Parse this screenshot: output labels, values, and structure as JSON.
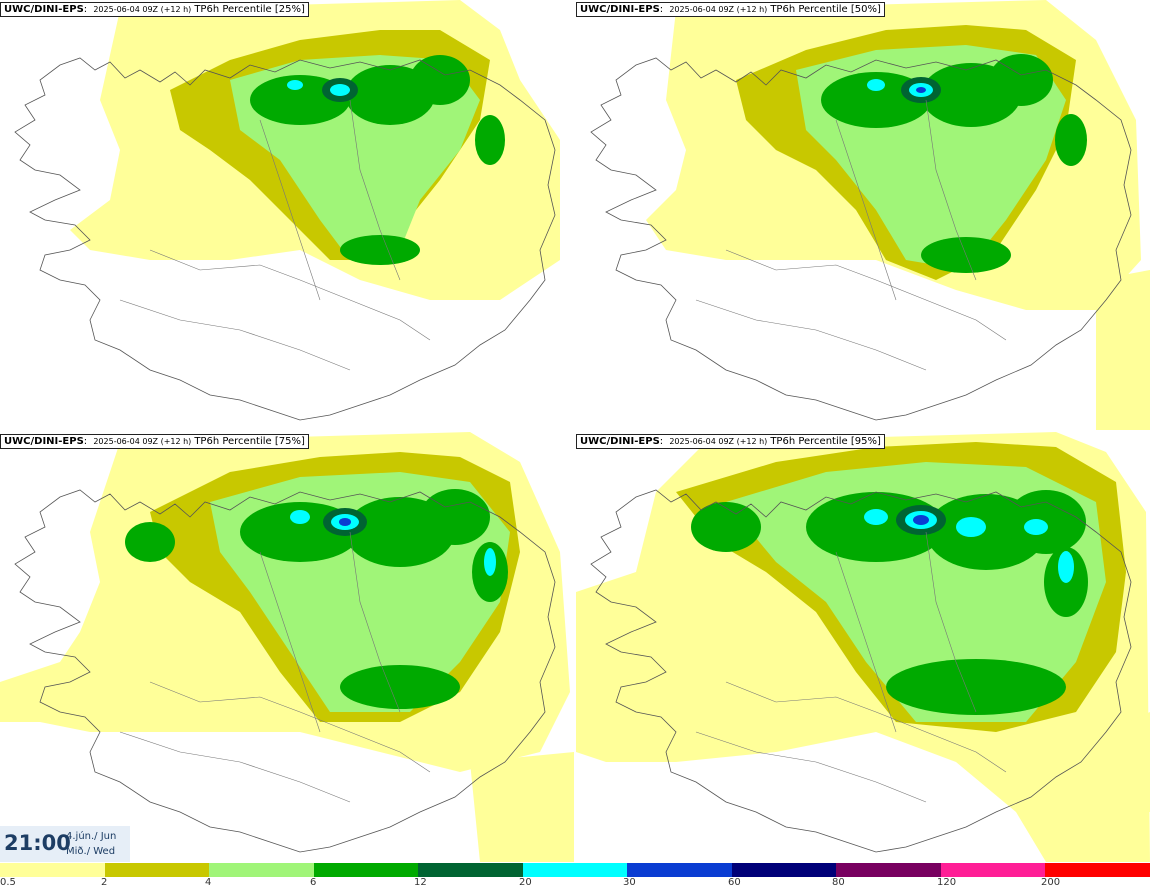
{
  "panels": [
    {
      "source": "UWC/DINI-EPS",
      "run": "2025-06-04 09Z (+12 h)",
      "label": "TP6h Percentile [25%]"
    },
    {
      "source": "UWC/DINI-EPS",
      "run": "2025-06-04 09Z (+12 h)",
      "label": "TP6h Percentile [50%]"
    },
    {
      "source": "UWC/DINI-EPS",
      "run": "2025-06-04 09Z (+12 h)",
      "label": "TP6h Percentile [75%]"
    },
    {
      "source": "UWC/DINI-EPS",
      "run": "2025-06-04 09Z (+12 h)",
      "label": "TP6h Percentile [95%]"
    }
  ],
  "valid_time": {
    "time": "21:00",
    "date": "4.jún./ Jun",
    "weekday": "Mið./ Wed"
  },
  "legend": {
    "ticks": [
      "0.5",
      "2",
      "4",
      "6",
      "12",
      "20",
      "30",
      "60",
      "80",
      "120",
      "200"
    ],
    "colors": [
      "#ffff99",
      "#c8c800",
      "#a0f578",
      "#00aa00",
      "#006432",
      "#00ffff",
      "#0a3cd2",
      "#000078",
      "#780060",
      "#ff1e96",
      "#ff0000"
    ]
  },
  "palette": {
    "land_line": "#555555",
    "background": "#ffffff"
  }
}
